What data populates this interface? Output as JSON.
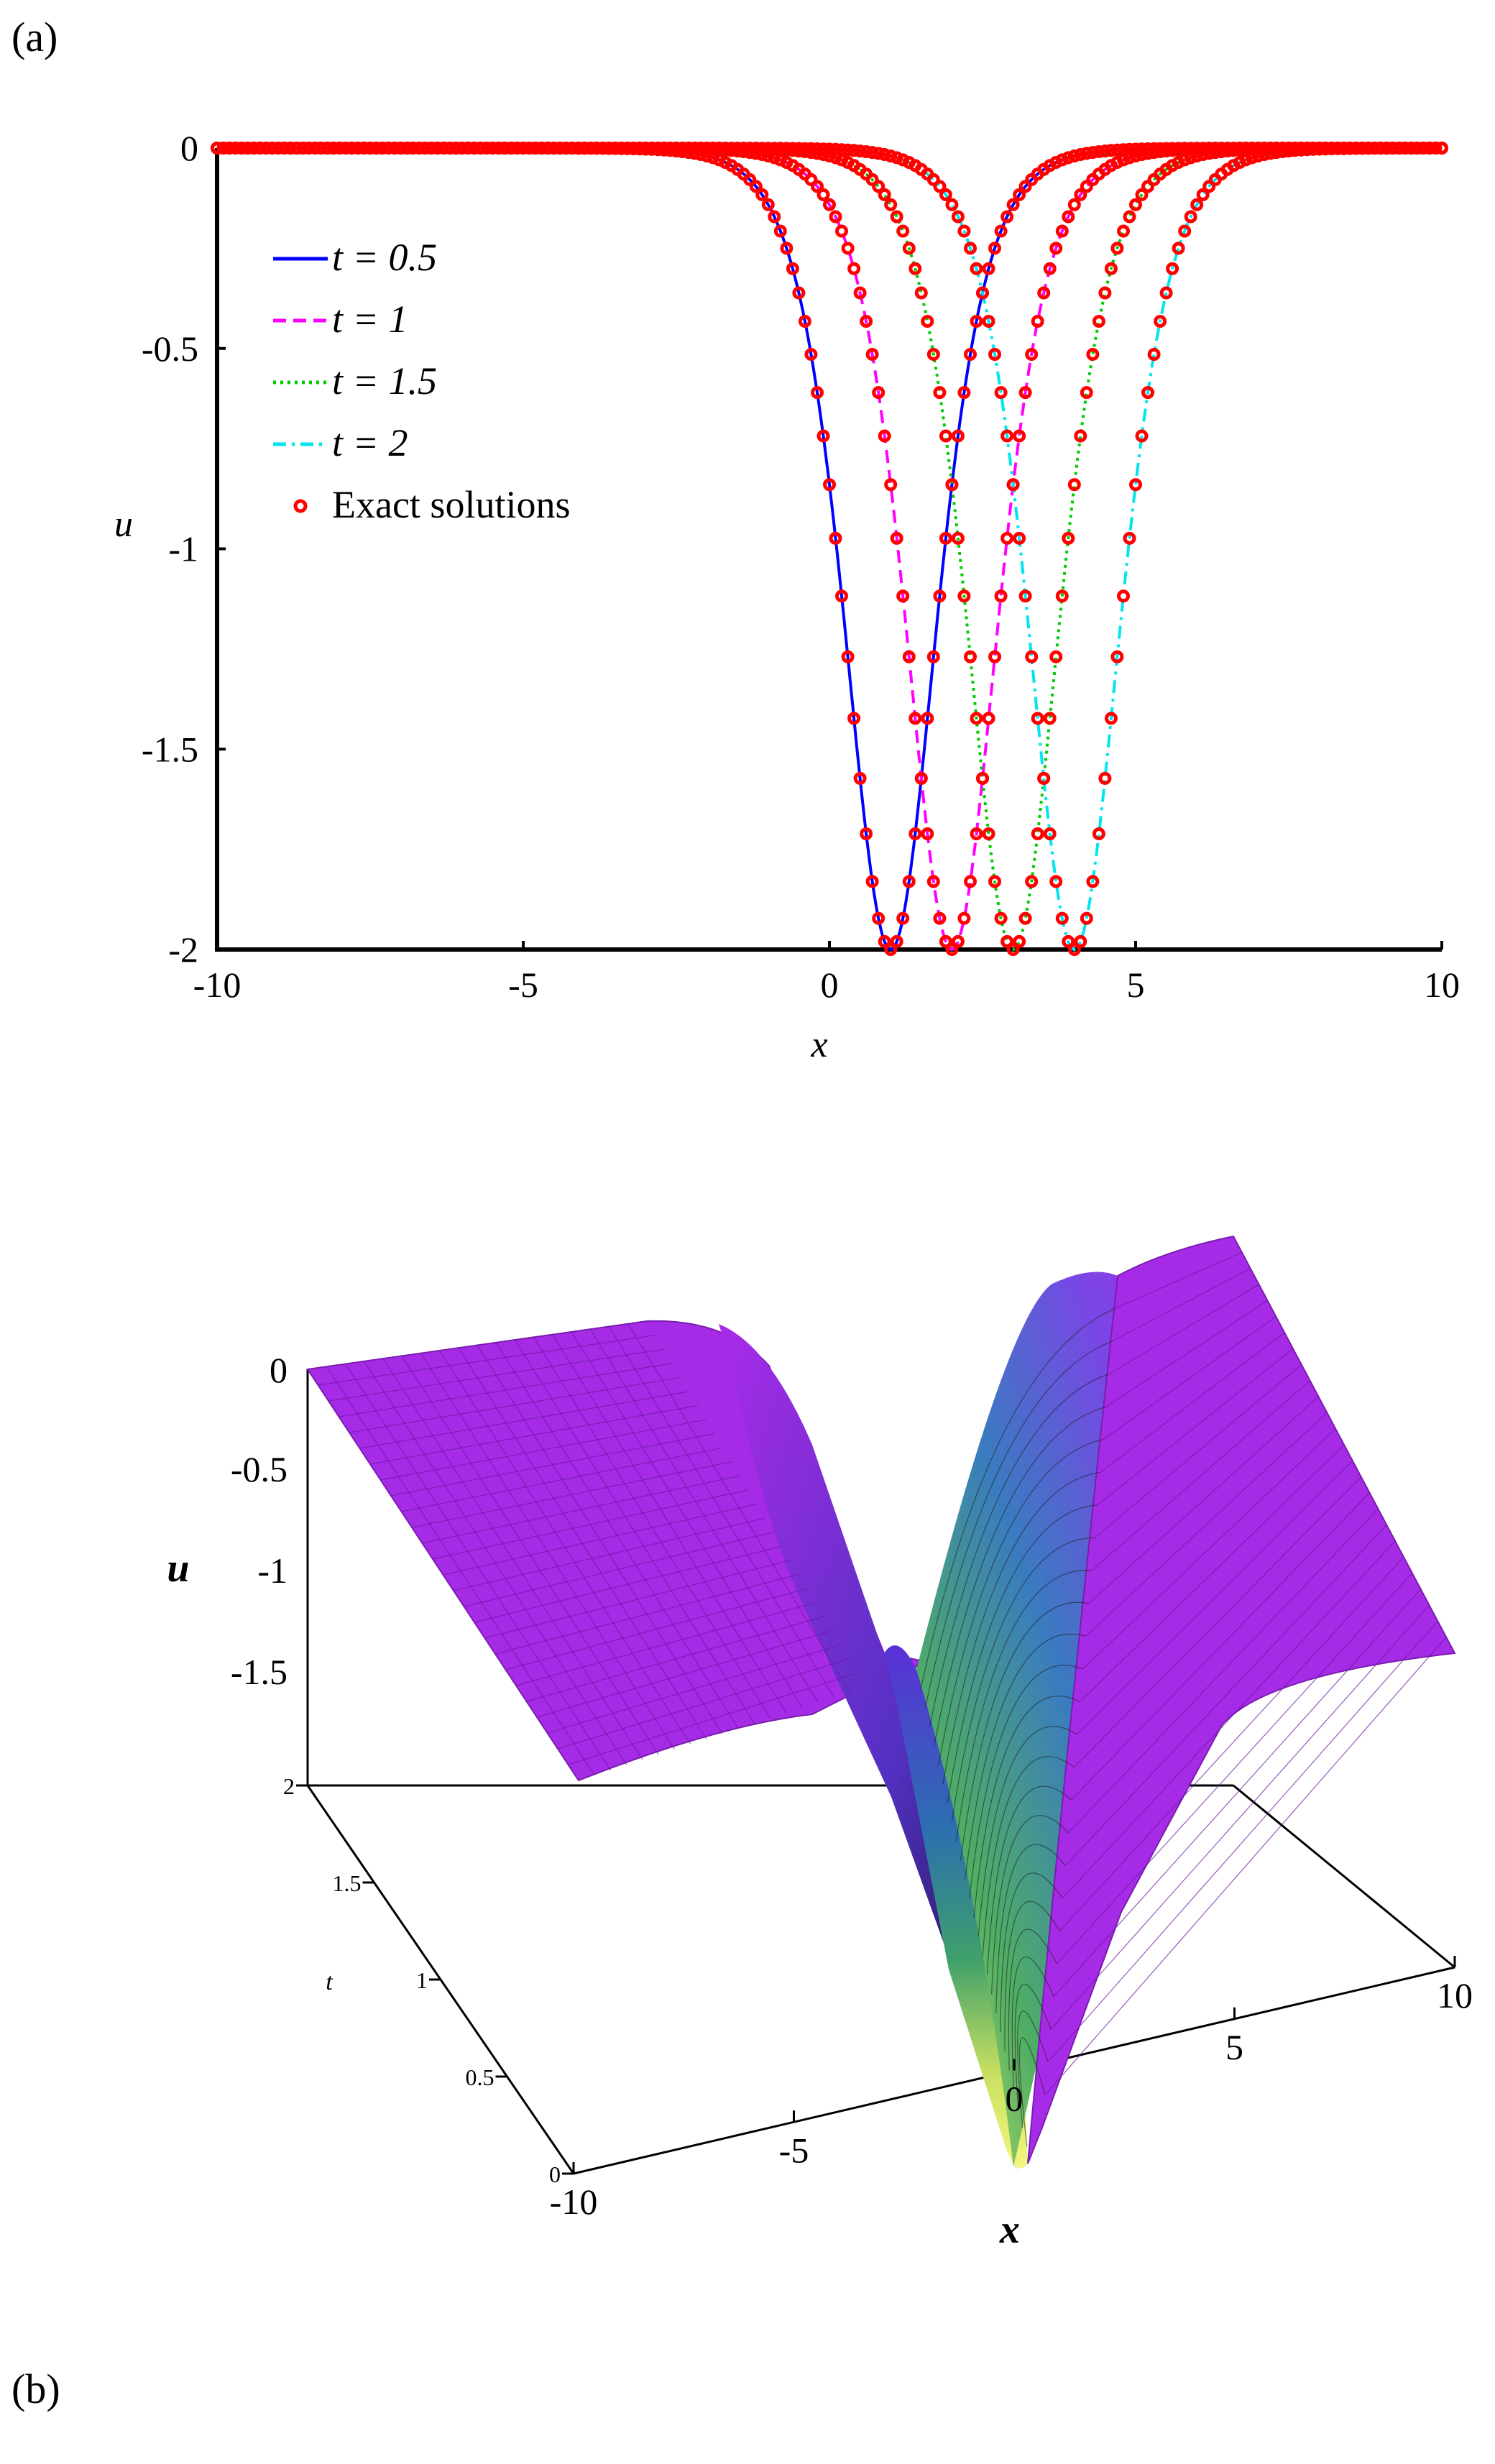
{
  "panels": {
    "a": "(a)",
    "b": "(b)"
  },
  "chart_data": [
    {
      "type": "line",
      "xlabel": "x",
      "ylabel": "u",
      "xlim": [
        -10,
        10
      ],
      "ylim": [
        -2,
        0
      ],
      "xticks": [
        "-10",
        "-5",
        "0",
        "5",
        "10"
      ],
      "yticks": [
        "0",
        "-0.5",
        "-1",
        "-1.5",
        "-2"
      ],
      "function": "u = -2 sech^2(x - 2t)",
      "series": [
        {
          "name": "t = 0.5",
          "t": 0.5,
          "color": "#0000ff",
          "dash": "solid"
        },
        {
          "name": "t = 1",
          "t": 1,
          "color": "#ff00ff",
          "dash": "dashed"
        },
        {
          "name": "t = 1.5",
          "t": 1.5,
          "color": "#00cc00",
          "dash": "dotted"
        },
        {
          "name": "t = 2",
          "t": 2,
          "color": "#00e5ee",
          "dash": "dashdot"
        },
        {
          "name": "Exact solutions",
          "color": "#ff0000",
          "marker": "circle"
        }
      ],
      "legend": "upper-left",
      "grid": false
    },
    {
      "type": "surface",
      "xlabel": "x",
      "ylabel": "t",
      "zlabel": "u",
      "xlim": [
        -10,
        10
      ],
      "tlim": [
        0,
        2
      ],
      "zlim": [
        -2,
        0
      ],
      "xticks": [
        "-10",
        "-5",
        "0",
        "5",
        "10"
      ],
      "tticks": [
        "0",
        "0.5",
        "1",
        "1.5",
        "2"
      ],
      "zticks": [
        "0",
        "-0.5",
        "-1",
        "-1.5"
      ],
      "colors": {
        "high": "#a824e8",
        "mid": "#2a9d7f",
        "low": "#f4f57a"
      }
    }
  ]
}
